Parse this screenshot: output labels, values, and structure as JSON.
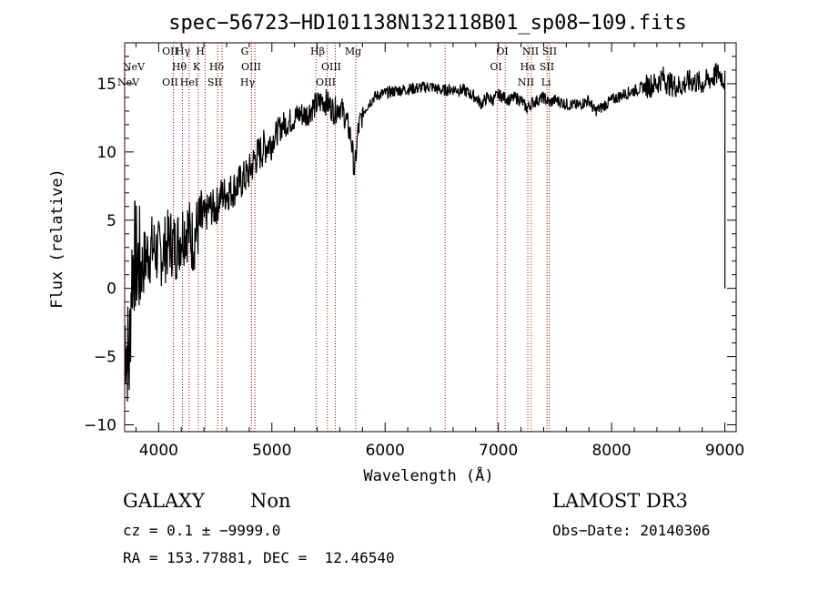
{
  "chart_data": {
    "type": "line",
    "title": "spec−56723−HD101138N132118B01_sp08−109.fits",
    "xlabel": "Wavelength (Å)",
    "ylabel": "Flux (relative)",
    "xlim": [
      3700,
      9100
    ],
    "ylim": [
      -10.5,
      18
    ],
    "x_ticks": [
      4000,
      5000,
      6000,
      7000,
      8000,
      9000
    ],
    "y_ticks": [
      -10,
      -5,
      0,
      5,
      10,
      15
    ],
    "y_tick_labels": [
      "−10",
      "−5",
      "0",
      "5",
      "10",
      "15"
    ],
    "series": [
      {
        "name": "flux",
        "x": [
          3700,
          3740,
          3760,
          3780,
          3800,
          3850,
          3900,
          3950,
          4000,
          4050,
          4100,
          4150,
          4200,
          4250,
          4300,
          4350,
          4400,
          4450,
          4500,
          4550,
          4600,
          4650,
          4700,
          4750,
          4800,
          4850,
          4900,
          4950,
          5000,
          5050,
          5100,
          5150,
          5200,
          5250,
          5300,
          5350,
          5400,
          5450,
          5500,
          5550,
          5600,
          5650,
          5700,
          5730,
          5760,
          5800,
          5850,
          5900,
          5950,
          6000,
          6100,
          6200,
          6300,
          6400,
          6500,
          6600,
          6700,
          6800,
          6850,
          6900,
          6950,
          7000,
          7050,
          7100,
          7150,
          7200,
          7250,
          7300,
          7350,
          7400,
          7450,
          7500,
          7600,
          7700,
          7800,
          7850,
          7900,
          7950,
          8000,
          8100,
          8200,
          8300,
          8400,
          8450,
          8500,
          8600,
          8700,
          8800,
          8900,
          8950,
          9000
        ],
        "y": [
          -3.0,
          -5.5,
          1.0,
          2.5,
          2.0,
          1.5,
          2.5,
          3.0,
          2.5,
          2.8,
          3.5,
          3.0,
          4.0,
          4.5,
          3.5,
          4.5,
          5.0,
          6.0,
          5.8,
          6.8,
          7.0,
          7.2,
          7.6,
          8.0,
          8.5,
          9.5,
          10.0,
          10.5,
          10.8,
          11.5,
          12.0,
          12.2,
          12.5,
          12.8,
          12.7,
          13.2,
          13.5,
          13.8,
          13.5,
          13.0,
          13.4,
          12.5,
          11.0,
          8.5,
          11.5,
          12.8,
          13.5,
          14.0,
          14.2,
          14.3,
          14.5,
          14.6,
          14.7,
          14.8,
          14.5,
          14.6,
          14.5,
          14.0,
          13.5,
          14.0,
          13.8,
          14.2,
          14.0,
          13.8,
          14.0,
          13.8,
          13.2,
          13.6,
          13.8,
          14.0,
          13.6,
          13.8,
          13.5,
          13.4,
          13.8,
          13.0,
          13.2,
          13.5,
          13.8,
          14.2,
          14.5,
          14.8,
          15.0,
          15.5,
          15.0,
          14.8,
          15.2,
          15.0,
          15.5,
          15.8,
          15.2
        ]
      }
    ],
    "emission_lines": [
      {
        "label": "NeV",
        "wavelength": 3426,
        "row": 1
      },
      {
        "label": "NeV",
        "wavelength": 3346,
        "row": 2
      },
      {
        "label": "OII",
        "wavelength": 3727,
        "row": 0
      },
      {
        "label": "Hθ",
        "wavelength": 3798,
        "row": 1
      },
      {
        "label": "Hγ",
        "wavelength": 4340,
        "row": 0
      },
      {
        "label": "H",
        "wavelength": 3970,
        "row": 0
      },
      {
        "label": "K",
        "wavelength": 3934,
        "row": 1
      },
      {
        "label": "OII",
        "wavelength": 3729,
        "row": 2
      },
      {
        "label": "HeI",
        "wavelength": 3889,
        "row": 2
      },
      {
        "label": "Hδ",
        "wavelength": 4102,
        "row": 1
      },
      {
        "label": "SII",
        "wavelength": 4070,
        "row": 2
      },
      {
        "label": "G",
        "wavelength": 4304,
        "row": 0
      },
      {
        "label": "OIII",
        "wavelength": 4363,
        "row": 1
      },
      {
        "label": "Hγ",
        "wavelength": 4340,
        "row": 2
      },
      {
        "label": "Hβ",
        "wavelength": 4861,
        "row": 0
      },
      {
        "label": "OIII",
        "wavelength": 4959,
        "row": 1
      },
      {
        "label": "OIII",
        "wavelength": 5007,
        "row": 2
      },
      {
        "label": "Mg",
        "wavelength": 5175,
        "row": 0
      },
      {
        "label": "OI",
        "wavelength": 6300,
        "row": 0
      },
      {
        "label": "OI",
        "wavelength": 6364,
        "row": 1
      },
      {
        "label": "NII",
        "wavelength": 6548,
        "row": 0
      },
      {
        "label": "SII",
        "wavelength": 6716,
        "row": 0
      },
      {
        "label": "Hα",
        "wavelength": 6563,
        "row": 1
      },
      {
        "label": "SII",
        "wavelength": 6731,
        "row": 1
      },
      {
        "label": "NII",
        "wavelength": 6583,
        "row": 2
      },
      {
        "label": "Li",
        "wavelength": 6708,
        "row": 2
      }
    ],
    "redshift_lines_at": [
      3700,
      4130,
      4210,
      4270,
      4350,
      4410,
      4520,
      4560,
      4820,
      4850,
      5390,
      5490,
      5560,
      5740,
      6530,
      6990,
      7060,
      7260,
      7290,
      7430,
      7450
    ]
  },
  "info": {
    "class": "GALAXY",
    "subclass": "Non",
    "survey": "LAMOST DR3",
    "cz": "cz = 0.1 ± −9999.0",
    "obs_date": "Obs−Date: 20140306",
    "coords": "RA = 153.77881, DEC =  12.46540"
  }
}
